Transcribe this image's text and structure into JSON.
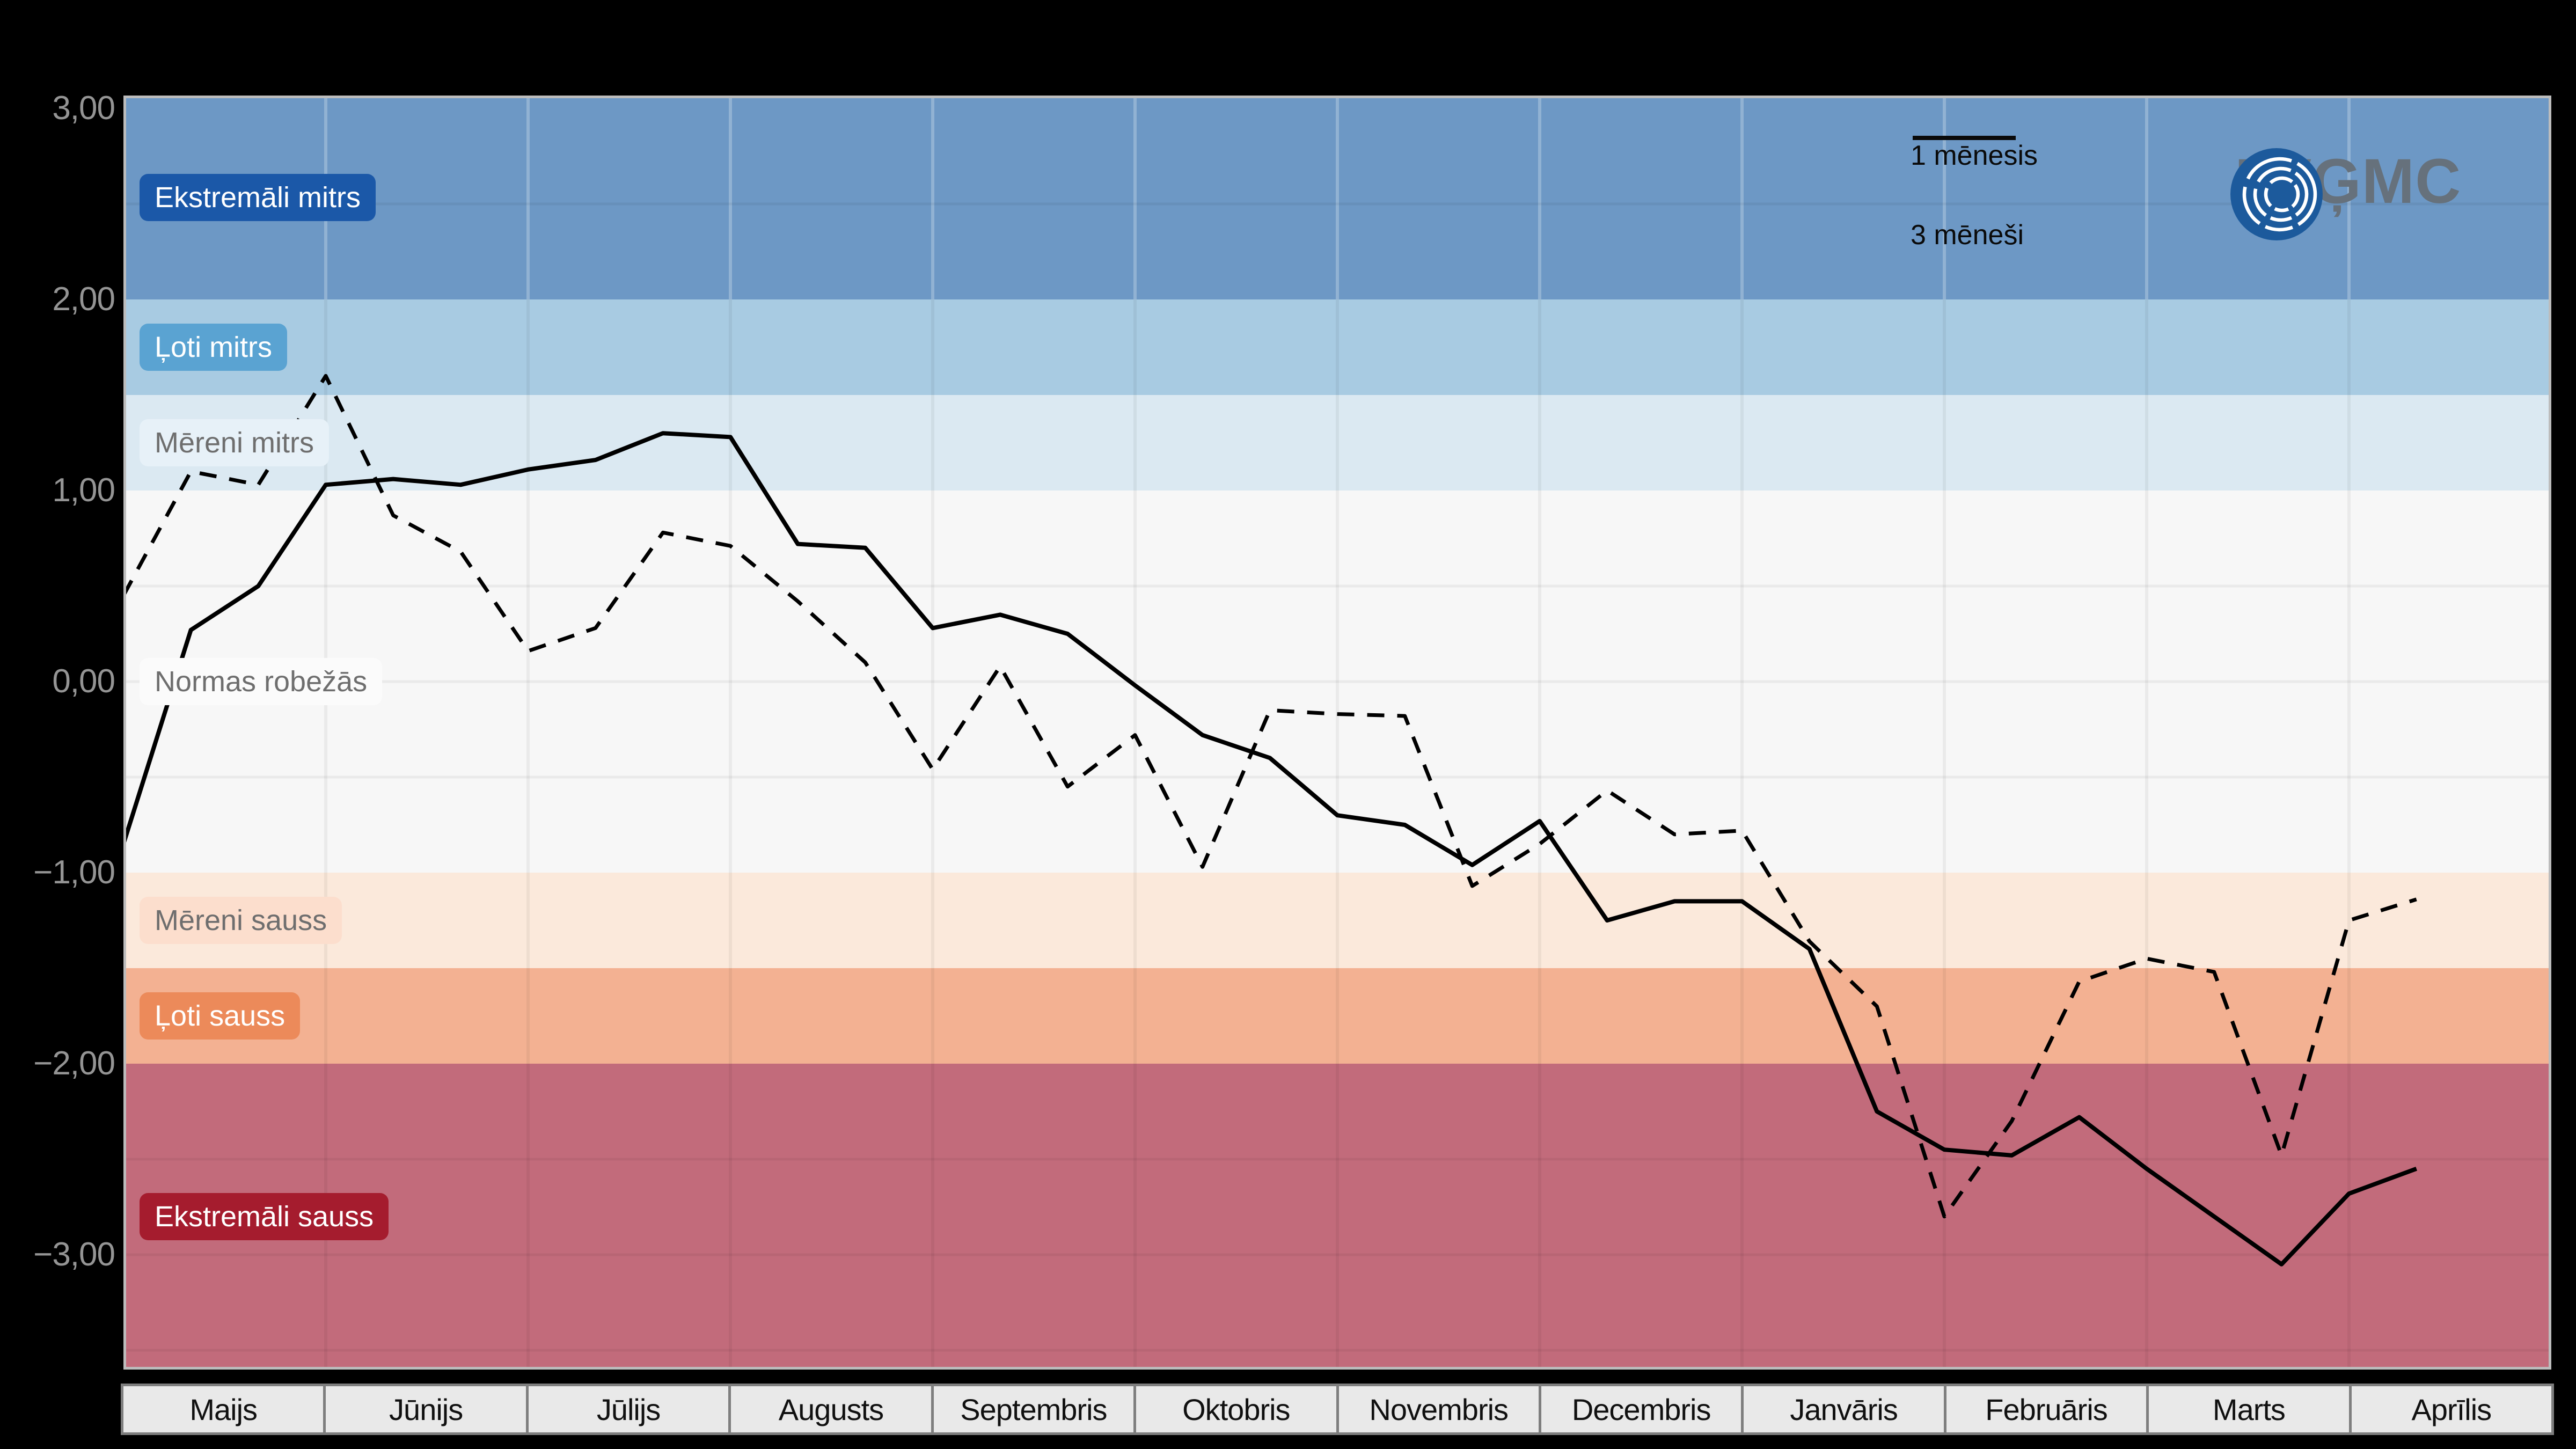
{
  "page": {
    "background": "#000000"
  },
  "logo": {
    "text": "LVĢMC",
    "circle_color": "#1c5a9c",
    "arc_color": "#ffffff",
    "text_color": "#66717c"
  },
  "legend": {
    "items": [
      {
        "label": "1 mēnesis",
        "style": "dashed"
      },
      {
        "label": "3 mēneši",
        "style": "solid"
      }
    ]
  },
  "y_axis": {
    "ticks": [
      {
        "label": "3,00",
        "value": 3
      },
      {
        "label": "2,00",
        "value": 2
      },
      {
        "label": "1,00",
        "value": 1
      },
      {
        "label": "0,00",
        "value": 0
      },
      {
        "label": "−1,00",
        "value": -1
      },
      {
        "label": "−2,00",
        "value": -2
      },
      {
        "label": "−3,00",
        "value": -3
      }
    ],
    "label_color": "#949494"
  },
  "x_axis": {
    "months": [
      "Maijs",
      "Jūnijs",
      "Jūlijs",
      "Augusts",
      "Septembris",
      "Oktobris",
      "Novembris",
      "Decembris",
      "Janvāris",
      "Februāris",
      "Marts",
      "Aprīlis"
    ],
    "bar_background": "#e9e9e9",
    "bar_border": "#7e7e7e",
    "text_color": "#101010"
  },
  "chart_data": {
    "type": "line",
    "title": "",
    "xlabel": "",
    "ylabel": "",
    "x_categories": [
      "Maijs",
      "Jūnijs",
      "Jūlijs",
      "Augusts",
      "Septembris",
      "Oktobris",
      "Novembris",
      "Decembris",
      "Janvāris",
      "Februāris",
      "Marts",
      "Aprīlis"
    ],
    "points_per_month": 3,
    "x_total_slots": 36,
    "ylim": [
      -3.6,
      3.07
    ],
    "grid": {
      "horizontal_step": 0.5,
      "vertical_at_month_boundaries": true,
      "grid_color": "rgba(0,0,0,0.05)"
    },
    "legend_position": "top-right",
    "line_color": "#000000",
    "series": [
      {
        "name": "1 mēnesis",
        "style": "dashed",
        "values": [
          0.45,
          1.1,
          1.03,
          1.6,
          0.87,
          0.68,
          0.16,
          0.28,
          0.78,
          0.71,
          0.42,
          0.1,
          -0.46,
          0.08,
          -0.55,
          -0.28,
          -0.97,
          -0.15,
          -0.17,
          -0.18,
          -1.07,
          -0.85,
          -0.57,
          -0.8,
          -0.78,
          -1.36,
          -1.7,
          -2.8,
          -2.3,
          -1.57,
          -1.45,
          -1.52,
          -2.48,
          -1.25,
          -1.14
        ]
      },
      {
        "name": "3 mēneši",
        "style": "solid",
        "values": [
          -0.85,
          0.27,
          0.5,
          1.03,
          1.06,
          1.03,
          1.11,
          1.16,
          1.3,
          1.28,
          0.72,
          0.7,
          0.28,
          0.35,
          0.25,
          -0.02,
          -0.28,
          -0.4,
          -0.7,
          -0.75,
          -0.96,
          -0.73,
          -1.25,
          -1.15,
          -1.15,
          -1.4,
          -2.25,
          -2.45,
          -2.48,
          -2.28,
          -2.55,
          -2.8,
          -3.05,
          -2.68,
          -2.55
        ]
      }
    ],
    "bands": [
      {
        "label": "Ekstremāli mitrs",
        "from": 2.0,
        "to": 3.1,
        "color": "#6d98c5",
        "chip_bg": "#1b58a8",
        "chip_text": "#ffffff"
      },
      {
        "label": "Ļoti mitrs",
        "from": 1.5,
        "to": 2.0,
        "color": "#a8cbe2",
        "chip_bg": "#5aa3d2",
        "chip_text": "#ffffff"
      },
      {
        "label": "Mēreni mitrs",
        "from": 1.0,
        "to": 1.5,
        "color": "#dbe9f2",
        "chip_bg": "#e7f1f8",
        "chip_text": "#6e6e6e"
      },
      {
        "label": "Normas robežās",
        "from": -1.0,
        "to": 1.0,
        "color": "#f7f7f7",
        "chip_bg": "#fbfbfb",
        "chip_text": "#6e6e6e"
      },
      {
        "label": "Mēreni sauss",
        "from": -1.5,
        "to": -1.0,
        "color": "#fbe9db",
        "chip_bg": "#fcdecd",
        "chip_text": "#6e6e6e"
      },
      {
        "label": "Ļoti sauss",
        "from": -2.0,
        "to": -1.5,
        "color": "#f3b192",
        "chip_bg": "#ec8a5a",
        "chip_text": "#ffffff"
      },
      {
        "label": "Ekstremāli sauss",
        "from": -3.6,
        "to": -2.0,
        "color": "#c26b7b",
        "chip_bg": "#a51c2e",
        "chip_text": "#ffffff"
      }
    ]
  }
}
